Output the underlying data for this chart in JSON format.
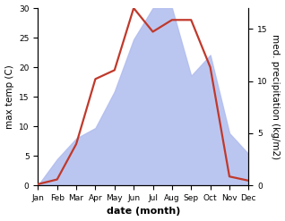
{
  "months": [
    "Jan",
    "Feb",
    "Mar",
    "Apr",
    "May",
    "Jun",
    "Jul",
    "Aug",
    "Sep",
    "Oct",
    "Nov",
    "Dec"
  ],
  "month_x": [
    1,
    2,
    3,
    4,
    5,
    6,
    7,
    8,
    9,
    10,
    11,
    12
  ],
  "temperature": [
    0.2,
    1.0,
    7.0,
    18.0,
    19.5,
    30.0,
    26.0,
    28.0,
    28.0,
    20.0,
    1.5,
    0.8
  ],
  "precipitation": [
    0.0,
    2.5,
    4.5,
    5.5,
    9.0,
    14.0,
    17.0,
    17.0,
    10.5,
    12.5,
    5.0,
    3.0
  ],
  "temp_color": "#c0392b",
  "precip_color": "#b0bcee",
  "temp_ylim": [
    0,
    30
  ],
  "precip_ylim": [
    0,
    17
  ],
  "temp_yticks": [
    0,
    5,
    10,
    15,
    20,
    25,
    30
  ],
  "precip_yticks": [
    0,
    5,
    10,
    15
  ],
  "xlabel": "date (month)",
  "ylabel_left": "max temp (C)",
  "ylabel_right": "med. precipitation (kg/m2)",
  "bg_color": "#ffffff",
  "line_width": 1.6,
  "ylabel_fontsize": 7.5,
  "tick_fontsize": 6.5,
  "xlabel_fontsize": 8
}
